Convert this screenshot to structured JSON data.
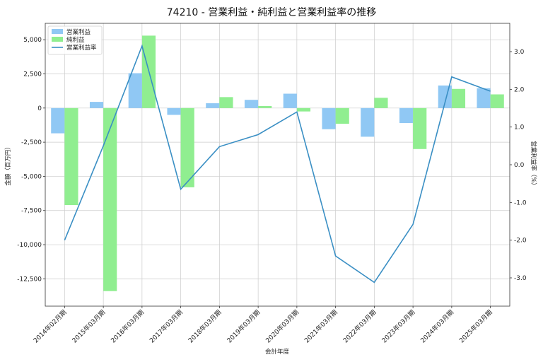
{
  "chart_data": {
    "type": "bar",
    "title": "74210 - 営業利益・純利益と営業利益率の推移",
    "xlabel": "会計年度",
    "ylabel": "金額（百万円）",
    "y2label": "営業利益率（%）",
    "categories": [
      "2014年02月期",
      "2015年03月期",
      "2016年03月期",
      "2017年03月期",
      "2018年03月期",
      "2019年03月期",
      "2020年03月期",
      "2021年03月期",
      "2022年03月期",
      "2023年03月期",
      "2024年03月期",
      "2025年03月期"
    ],
    "ylim": [
      -14500,
      6200
    ],
    "y2lim": [
      -3.75,
      3.75
    ],
    "yticks": [
      5000,
      2500,
      0,
      -2500,
      -5000,
      -7500,
      -10000,
      -12500
    ],
    "ytick_labels": [
      "5,000",
      "2,500",
      "0",
      "-2,500",
      "-5,000",
      "-7,500",
      "-10,000",
      "-12,500"
    ],
    "y2ticks": [
      3.0,
      2.0,
      1.0,
      0.0,
      -1.0,
      -2.0,
      -3.0
    ],
    "y2tick_labels": [
      "3.0",
      "2.0",
      "1.0",
      "0.0",
      "-1.0",
      "-2.0",
      "-3.0"
    ],
    "grid": true,
    "legend_position": "top-left",
    "series": [
      {
        "name": "営業利益",
        "kind": "bar",
        "axis": "left",
        "color": "#90c8f4",
        "values": [
          -1850,
          450,
          2550,
          -500,
          350,
          600,
          1050,
          -1550,
          -2100,
          -1100,
          1650,
          1450
        ]
      },
      {
        "name": "純利益",
        "kind": "bar",
        "axis": "left",
        "color": "#90ee90",
        "values": [
          -7100,
          -13400,
          5300,
          -5800,
          800,
          150,
          -250,
          -1150,
          750,
          -3000,
          1400,
          1000
        ]
      },
      {
        "name": "営業利益率",
        "kind": "line",
        "axis": "right",
        "color": "#3a8fc4",
        "values": [
          -2.0,
          0.5,
          3.15,
          -0.65,
          0.48,
          0.8,
          1.4,
          -2.42,
          -3.12,
          -1.58,
          2.33,
          1.95
        ]
      }
    ]
  }
}
